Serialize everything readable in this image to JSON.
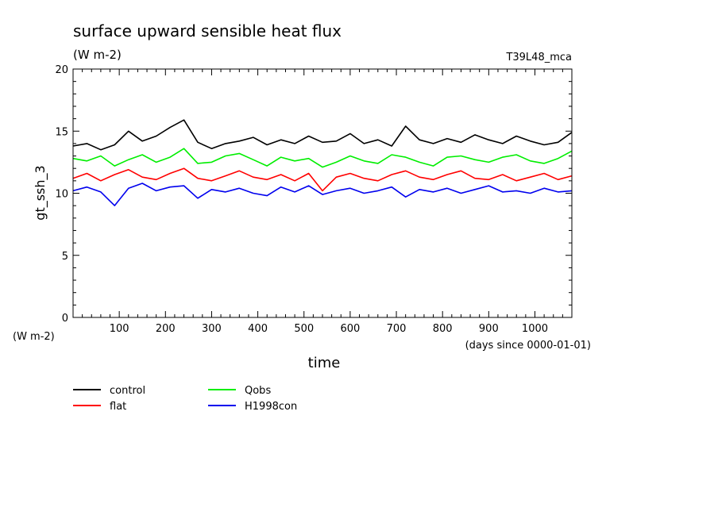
{
  "chart_data": {
    "type": "line",
    "title": "surface upward sensible heat flux",
    "subtitle": "(W m-2)",
    "run_label": "T39L48_mca",
    "xlabel": "time",
    "x_units": "(days since 0000-01-01)",
    "ylabel": "gt_ssh_3",
    "y_units": "(W m-2)",
    "xlim": [
      0,
      1080
    ],
    "ylim": [
      0,
      20
    ],
    "xticks": [
      "100",
      "200",
      "300",
      "400",
      "500",
      "600",
      "700",
      "800",
      "900",
      "1000"
    ],
    "yticks": [
      "0",
      "5",
      "10",
      "15",
      "20"
    ],
    "grid": false,
    "legend_position": "bottom-left",
    "x": [
      0,
      30,
      60,
      90,
      120,
      150,
      180,
      210,
      240,
      270,
      300,
      330,
      360,
      390,
      420,
      450,
      480,
      510,
      540,
      570,
      600,
      630,
      660,
      690,
      720,
      750,
      780,
      810,
      840,
      870,
      900,
      930,
      960,
      990,
      1020,
      1050,
      1080
    ],
    "series": [
      {
        "name": "control",
        "color": "#000000",
        "values": [
          13.8,
          14.0,
          13.5,
          13.9,
          15.0,
          14.2,
          14.6,
          15.3,
          15.9,
          14.1,
          13.6,
          14.0,
          14.2,
          14.5,
          13.9,
          14.3,
          14.0,
          14.6,
          14.1,
          14.2,
          14.8,
          14.0,
          14.3,
          13.8,
          15.4,
          14.3,
          14.0,
          14.4,
          14.1,
          14.7,
          14.3,
          14.0,
          14.6,
          14.2,
          13.9,
          14.1,
          14.9
        ]
      },
      {
        "name": "Qobs",
        "color": "#00ee00",
        "values": [
          12.8,
          12.6,
          13.0,
          12.2,
          12.7,
          13.1,
          12.5,
          12.9,
          13.6,
          12.4,
          12.5,
          13.0,
          13.2,
          12.7,
          12.2,
          12.9,
          12.6,
          12.8,
          12.1,
          12.5,
          13.0,
          12.6,
          12.4,
          13.1,
          12.9,
          12.5,
          12.2,
          12.9,
          13.0,
          12.7,
          12.5,
          12.9,
          13.1,
          12.6,
          12.4,
          12.8,
          13.4
        ]
      },
      {
        "name": "flat",
        "color": "#ff0000",
        "values": [
          11.2,
          11.6,
          11.0,
          11.5,
          11.9,
          11.3,
          11.1,
          11.6,
          12.0,
          11.2,
          11.0,
          11.4,
          11.8,
          11.3,
          11.1,
          11.5,
          11.0,
          11.6,
          10.2,
          11.3,
          11.6,
          11.2,
          11.0,
          11.5,
          11.8,
          11.3,
          11.1,
          11.5,
          11.8,
          11.2,
          11.1,
          11.5,
          11.0,
          11.3,
          11.6,
          11.1,
          11.4
        ]
      },
      {
        "name": "H1998con",
        "color": "#0000ee",
        "values": [
          10.2,
          10.5,
          10.1,
          9.0,
          10.4,
          10.8,
          10.2,
          10.5,
          10.6,
          9.6,
          10.3,
          10.1,
          10.4,
          10.0,
          9.8,
          10.5,
          10.1,
          10.6,
          9.9,
          10.2,
          10.4,
          10.0,
          10.2,
          10.5,
          9.7,
          10.3,
          10.1,
          10.4,
          10.0,
          10.3,
          10.6,
          10.1,
          10.2,
          10.0,
          10.4,
          10.1,
          10.2
        ]
      }
    ],
    "legend": [
      {
        "name": "control",
        "color": "#000000"
      },
      {
        "name": "Qobs",
        "color": "#00ee00"
      },
      {
        "name": "flat",
        "color": "#ff0000"
      },
      {
        "name": "H1998con",
        "color": "#0000ee"
      }
    ]
  }
}
